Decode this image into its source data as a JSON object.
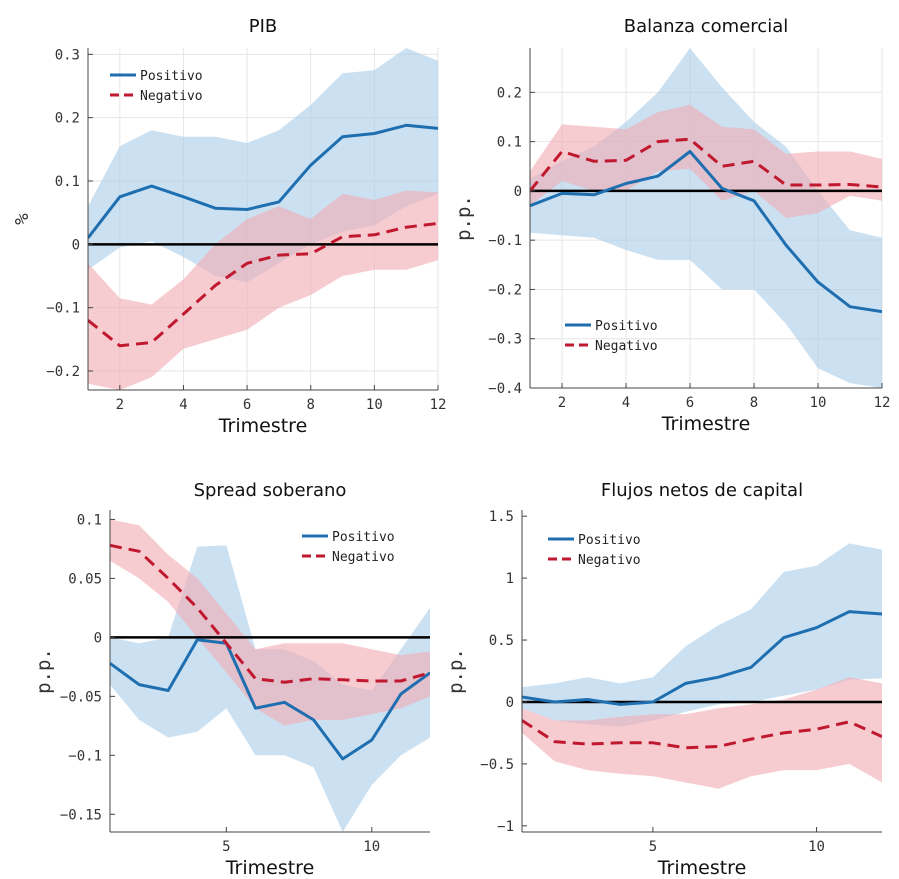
{
  "colors": {
    "positivo_line": "#1f6fb0",
    "positivo_band": "#a8cde9",
    "negativo_line": "#c0192f",
    "negativo_band": "#f2aab3",
    "zero_line": "#000000"
  },
  "chart_data": [
    {
      "type": "line",
      "title": "PIB",
      "xlabel": "Trimestre",
      "ylabel": "%",
      "xlim": [
        1,
        12
      ],
      "ylim": [
        -0.23,
        0.31
      ],
      "xticks": [
        2,
        4,
        6,
        8,
        10,
        12
      ],
      "yticks": [
        -0.2,
        -0.1,
        0,
        0.1,
        0.2,
        0.3
      ],
      "ytick_labels": [
        "−0.2",
        "−0.1",
        "0",
        "0.1",
        "0.2",
        "0.3"
      ],
      "xtick_labels": [
        "2",
        "4",
        "6",
        "8",
        "10",
        "12"
      ],
      "grid": true,
      "legend_position": "top-left",
      "x": [
        1,
        2,
        3,
        4,
        5,
        6,
        7,
        8,
        9,
        10,
        11,
        12
      ],
      "series": [
        {
          "name": "Positivo",
          "style": "solid",
          "values": [
            0.01,
            0.075,
            0.092,
            0.075,
            0.057,
            0.055,
            0.067,
            0.125,
            0.17,
            0.175,
            0.188,
            0.183
          ],
          "lower": [
            -0.04,
            -0.005,
            0.005,
            -0.02,
            -0.05,
            -0.06,
            -0.03,
            0.0,
            0.02,
            0.03,
            0.06,
            0.08
          ],
          "upper": [
            0.06,
            0.155,
            0.18,
            0.17,
            0.17,
            0.16,
            0.18,
            0.22,
            0.27,
            0.275,
            0.31,
            0.29
          ]
        },
        {
          "name": "Negativo",
          "style": "dashed",
          "values": [
            -0.12,
            -0.16,
            -0.155,
            -0.11,
            -0.065,
            -0.03,
            -0.017,
            -0.015,
            0.012,
            0.015,
            0.027,
            0.033
          ],
          "lower": [
            -0.22,
            -0.23,
            -0.21,
            -0.165,
            -0.15,
            -0.135,
            -0.1,
            -0.08,
            -0.05,
            -0.04,
            -0.04,
            -0.025
          ],
          "upper": [
            -0.03,
            -0.085,
            -0.095,
            -0.055,
            0.0,
            0.04,
            0.06,
            0.04,
            0.08,
            0.07,
            0.085,
            0.082
          ]
        }
      ]
    },
    {
      "type": "line",
      "title": "Balanza comercial",
      "xlabel": "Trimestre",
      "ylabel": "p.p.",
      "xlim": [
        1,
        12
      ],
      "ylim": [
        -0.4,
        0.29
      ],
      "xticks": [
        2,
        4,
        6,
        8,
        10,
        12
      ],
      "yticks": [
        -0.4,
        -0.3,
        -0.2,
        -0.1,
        0,
        0.1,
        0.2
      ],
      "ytick_labels": [
        "−0.4",
        "−0.3",
        "−0.2",
        "−0.1",
        "0",
        "0.1",
        "0.2"
      ],
      "xtick_labels": [
        "2",
        "4",
        "6",
        "8",
        "10",
        "12"
      ],
      "grid": true,
      "legend_position": "bottom-left",
      "x": [
        1,
        2,
        3,
        4,
        5,
        6,
        7,
        8,
        9,
        10,
        11,
        12
      ],
      "series": [
        {
          "name": "Positivo",
          "style": "solid",
          "values": [
            -0.03,
            -0.005,
            -0.008,
            0.015,
            0.03,
            0.08,
            0.005,
            -0.02,
            -0.11,
            -0.185,
            -0.235,
            -0.245
          ],
          "lower": [
            -0.085,
            -0.09,
            -0.095,
            -0.12,
            -0.14,
            -0.14,
            -0.2,
            -0.2,
            -0.27,
            -0.36,
            -0.39,
            -0.4
          ],
          "upper": [
            0.025,
            0.06,
            0.09,
            0.14,
            0.2,
            0.29,
            0.21,
            0.14,
            0.09,
            0.0,
            -0.08,
            -0.095
          ]
        },
        {
          "name": "Negativo",
          "style": "dashed",
          "values": [
            0.0,
            0.08,
            0.06,
            0.062,
            0.1,
            0.105,
            0.05,
            0.06,
            0.012,
            0.012,
            0.013,
            0.008
          ],
          "lower": [
            -0.03,
            0.02,
            0.0,
            0.0,
            0.04,
            0.045,
            -0.02,
            0.0,
            -0.055,
            -0.045,
            -0.01,
            -0.02
          ],
          "upper": [
            0.04,
            0.135,
            0.13,
            0.125,
            0.16,
            0.175,
            0.13,
            0.125,
            0.075,
            0.08,
            0.08,
            0.065
          ]
        }
      ]
    },
    {
      "type": "line",
      "title": "Spread soberano",
      "xlabel": "Trimestre",
      "ylabel": "p.p.",
      "xlim": [
        1,
        12
      ],
      "ylim": [
        -0.165,
        0.108
      ],
      "xticks": [
        5,
        10
      ],
      "yticks": [
        -0.15,
        -0.1,
        -0.05,
        0,
        0.05,
        0.1
      ],
      "ytick_labels": [
        "−0.15",
        "−0.1",
        "−0.05",
        "0",
        "0.05",
        "0.1"
      ],
      "xtick_labels": [
        "5",
        "10"
      ],
      "grid": false,
      "legend_position": "top-right",
      "x": [
        1,
        2,
        3,
        4,
        5,
        6,
        7,
        8,
        9,
        10,
        11,
        12
      ],
      "series": [
        {
          "name": "Positivo",
          "style": "solid",
          "values": [
            -0.022,
            -0.04,
            -0.045,
            -0.002,
            -0.005,
            -0.06,
            -0.055,
            -0.07,
            -0.103,
            -0.087,
            -0.048,
            -0.03
          ],
          "lower": [
            -0.04,
            -0.07,
            -0.085,
            -0.08,
            -0.06,
            -0.1,
            -0.1,
            -0.11,
            -0.165,
            -0.125,
            -0.1,
            -0.085
          ],
          "upper": [
            0.0,
            -0.005,
            0.0,
            0.077,
            0.078,
            -0.01,
            -0.01,
            -0.02,
            -0.04,
            -0.045,
            -0.01,
            0.025
          ]
        },
        {
          "name": "Negativo",
          "style": "dashed",
          "values": [
            0.078,
            0.073,
            0.05,
            0.025,
            -0.005,
            -0.035,
            -0.038,
            -0.035,
            -0.036,
            -0.037,
            -0.037,
            -0.03
          ],
          "lower": [
            0.065,
            0.05,
            0.03,
            0.0,
            -0.03,
            -0.06,
            -0.075,
            -0.07,
            -0.07,
            -0.065,
            -0.06,
            -0.05
          ],
          "upper": [
            0.1,
            0.095,
            0.07,
            0.05,
            0.02,
            -0.01,
            -0.005,
            -0.005,
            -0.005,
            -0.01,
            -0.015,
            -0.012
          ]
        }
      ]
    },
    {
      "type": "line",
      "title": "Flujos netos de capital",
      "xlabel": "Trimestre",
      "ylabel": "p.p.",
      "xlim": [
        1,
        12
      ],
      "ylim": [
        -1.05,
        1.55
      ],
      "xticks": [
        5,
        10
      ],
      "yticks": [
        -1,
        -0.5,
        0,
        0.5,
        1,
        1.5
      ],
      "ytick_labels": [
        "−1",
        "−0.5",
        "0",
        "0.5",
        "1",
        "1.5"
      ],
      "xtick_labels": [
        "5",
        "10"
      ],
      "grid": false,
      "legend_position": "top-left",
      "x": [
        1,
        2,
        3,
        4,
        5,
        6,
        7,
        8,
        9,
        10,
        11,
        12
      ],
      "series": [
        {
          "name": "Positivo",
          "style": "solid",
          "values": [
            0.04,
            0.0,
            0.02,
            -0.02,
            0.0,
            0.15,
            0.2,
            0.28,
            0.52,
            0.6,
            0.73,
            0.71
          ],
          "lower": [
            -0.05,
            -0.15,
            -0.18,
            -0.2,
            -0.15,
            -0.08,
            -0.02,
            0.0,
            0.05,
            0.1,
            0.18,
            0.19
          ],
          "upper": [
            0.12,
            0.15,
            0.2,
            0.15,
            0.2,
            0.45,
            0.62,
            0.75,
            1.05,
            1.1,
            1.28,
            1.23
          ]
        },
        {
          "name": "Negativo",
          "style": "dashed",
          "values": [
            -0.15,
            -0.32,
            -0.34,
            -0.33,
            -0.33,
            -0.37,
            -0.36,
            -0.3,
            -0.25,
            -0.22,
            -0.16,
            -0.28
          ],
          "lower": [
            -0.25,
            -0.48,
            -0.55,
            -0.58,
            -0.6,
            -0.65,
            -0.7,
            -0.6,
            -0.55,
            -0.55,
            -0.5,
            -0.65
          ],
          "upper": [
            -0.05,
            -0.15,
            -0.15,
            -0.12,
            -0.1,
            -0.1,
            -0.05,
            -0.02,
            0.02,
            0.1,
            0.2,
            0.15
          ]
        }
      ]
    }
  ]
}
